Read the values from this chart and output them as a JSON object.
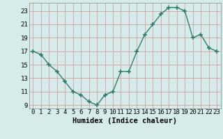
{
  "x": [
    0,
    1,
    2,
    3,
    4,
    5,
    6,
    7,
    8,
    9,
    10,
    11,
    12,
    13,
    14,
    15,
    16,
    17,
    18,
    19,
    20,
    21,
    22,
    23
  ],
  "y": [
    17,
    16.5,
    15,
    14,
    12.5,
    11,
    10.5,
    9.5,
    9,
    10.5,
    11,
    14,
    14,
    17,
    19.5,
    21,
    22.5,
    23.5,
    23.5,
    23,
    19,
    19.5,
    17.5,
    17
  ],
  "line_color": "#2e7d6e",
  "marker_color": "#2e7d6e",
  "bg_color": "#d5ecea",
  "grid_color": "#c0dbd8",
  "xlabel": "Humidex (Indice chaleur)",
  "xlabel_fontsize": 7.5,
  "tick_fontsize": 6.5,
  "ylim": [
    8.5,
    24.2
  ],
  "xlim": [
    -0.5,
    23.5
  ],
  "yticks": [
    9,
    11,
    13,
    15,
    17,
    19,
    21,
    23
  ],
  "xticks": [
    0,
    1,
    2,
    3,
    4,
    5,
    6,
    7,
    8,
    9,
    10,
    11,
    12,
    13,
    14,
    15,
    16,
    17,
    18,
    19,
    20,
    21,
    22,
    23
  ]
}
